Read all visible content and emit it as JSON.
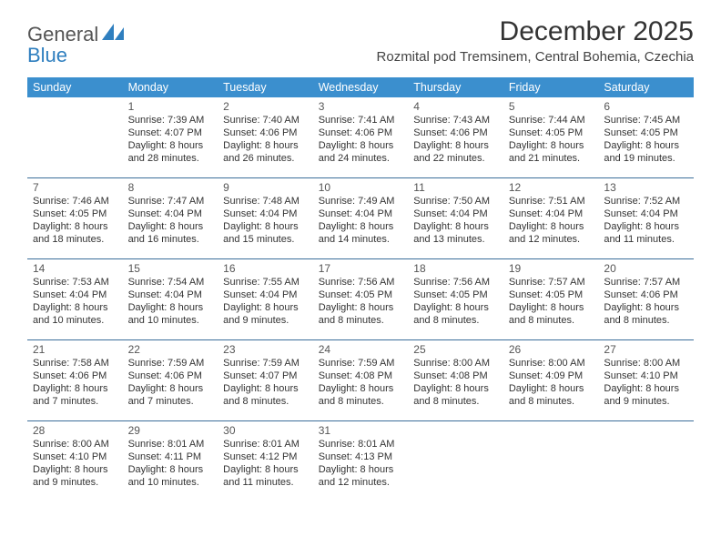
{
  "logo": {
    "text1": "General",
    "text2": "Blue"
  },
  "title": "December 2025",
  "location": "Rozmital pod Tremsinem, Central Bohemia, Czechia",
  "colors": {
    "header_bg": "#3b8fce",
    "rule": "#3b6e9a",
    "logo_blue": "#2f7fbf",
    "text": "#333333",
    "bg": "#ffffff"
  },
  "typography": {
    "title_fontsize": 30,
    "location_fontsize": 15,
    "dow_fontsize": 12.5,
    "daynum_fontsize": 12,
    "cell_fontsize": 11
  },
  "days_of_week": [
    "Sunday",
    "Monday",
    "Tuesday",
    "Wednesday",
    "Thursday",
    "Friday",
    "Saturday"
  ],
  "weeks": [
    [
      null,
      {
        "n": "1",
        "sr": "Sunrise: 7:39 AM",
        "ss": "Sunset: 4:07 PM",
        "dl1": "Daylight: 8 hours",
        "dl2": "and 28 minutes."
      },
      {
        "n": "2",
        "sr": "Sunrise: 7:40 AM",
        "ss": "Sunset: 4:06 PM",
        "dl1": "Daylight: 8 hours",
        "dl2": "and 26 minutes."
      },
      {
        "n": "3",
        "sr": "Sunrise: 7:41 AM",
        "ss": "Sunset: 4:06 PM",
        "dl1": "Daylight: 8 hours",
        "dl2": "and 24 minutes."
      },
      {
        "n": "4",
        "sr": "Sunrise: 7:43 AM",
        "ss": "Sunset: 4:06 PM",
        "dl1": "Daylight: 8 hours",
        "dl2": "and 22 minutes."
      },
      {
        "n": "5",
        "sr": "Sunrise: 7:44 AM",
        "ss": "Sunset: 4:05 PM",
        "dl1": "Daylight: 8 hours",
        "dl2": "and 21 minutes."
      },
      {
        "n": "6",
        "sr": "Sunrise: 7:45 AM",
        "ss": "Sunset: 4:05 PM",
        "dl1": "Daylight: 8 hours",
        "dl2": "and 19 minutes."
      }
    ],
    [
      {
        "n": "7",
        "sr": "Sunrise: 7:46 AM",
        "ss": "Sunset: 4:05 PM",
        "dl1": "Daylight: 8 hours",
        "dl2": "and 18 minutes."
      },
      {
        "n": "8",
        "sr": "Sunrise: 7:47 AM",
        "ss": "Sunset: 4:04 PM",
        "dl1": "Daylight: 8 hours",
        "dl2": "and 16 minutes."
      },
      {
        "n": "9",
        "sr": "Sunrise: 7:48 AM",
        "ss": "Sunset: 4:04 PM",
        "dl1": "Daylight: 8 hours",
        "dl2": "and 15 minutes."
      },
      {
        "n": "10",
        "sr": "Sunrise: 7:49 AM",
        "ss": "Sunset: 4:04 PM",
        "dl1": "Daylight: 8 hours",
        "dl2": "and 14 minutes."
      },
      {
        "n": "11",
        "sr": "Sunrise: 7:50 AM",
        "ss": "Sunset: 4:04 PM",
        "dl1": "Daylight: 8 hours",
        "dl2": "and 13 minutes."
      },
      {
        "n": "12",
        "sr": "Sunrise: 7:51 AM",
        "ss": "Sunset: 4:04 PM",
        "dl1": "Daylight: 8 hours",
        "dl2": "and 12 minutes."
      },
      {
        "n": "13",
        "sr": "Sunrise: 7:52 AM",
        "ss": "Sunset: 4:04 PM",
        "dl1": "Daylight: 8 hours",
        "dl2": "and 11 minutes."
      }
    ],
    [
      {
        "n": "14",
        "sr": "Sunrise: 7:53 AM",
        "ss": "Sunset: 4:04 PM",
        "dl1": "Daylight: 8 hours",
        "dl2": "and 10 minutes."
      },
      {
        "n": "15",
        "sr": "Sunrise: 7:54 AM",
        "ss": "Sunset: 4:04 PM",
        "dl1": "Daylight: 8 hours",
        "dl2": "and 10 minutes."
      },
      {
        "n": "16",
        "sr": "Sunrise: 7:55 AM",
        "ss": "Sunset: 4:04 PM",
        "dl1": "Daylight: 8 hours",
        "dl2": "and 9 minutes."
      },
      {
        "n": "17",
        "sr": "Sunrise: 7:56 AM",
        "ss": "Sunset: 4:05 PM",
        "dl1": "Daylight: 8 hours",
        "dl2": "and 8 minutes."
      },
      {
        "n": "18",
        "sr": "Sunrise: 7:56 AM",
        "ss": "Sunset: 4:05 PM",
        "dl1": "Daylight: 8 hours",
        "dl2": "and 8 minutes."
      },
      {
        "n": "19",
        "sr": "Sunrise: 7:57 AM",
        "ss": "Sunset: 4:05 PM",
        "dl1": "Daylight: 8 hours",
        "dl2": "and 8 minutes."
      },
      {
        "n": "20",
        "sr": "Sunrise: 7:57 AM",
        "ss": "Sunset: 4:06 PM",
        "dl1": "Daylight: 8 hours",
        "dl2": "and 8 minutes."
      }
    ],
    [
      {
        "n": "21",
        "sr": "Sunrise: 7:58 AM",
        "ss": "Sunset: 4:06 PM",
        "dl1": "Daylight: 8 hours",
        "dl2": "and 7 minutes."
      },
      {
        "n": "22",
        "sr": "Sunrise: 7:59 AM",
        "ss": "Sunset: 4:06 PM",
        "dl1": "Daylight: 8 hours",
        "dl2": "and 7 minutes."
      },
      {
        "n": "23",
        "sr": "Sunrise: 7:59 AM",
        "ss": "Sunset: 4:07 PM",
        "dl1": "Daylight: 8 hours",
        "dl2": "and 8 minutes."
      },
      {
        "n": "24",
        "sr": "Sunrise: 7:59 AM",
        "ss": "Sunset: 4:08 PM",
        "dl1": "Daylight: 8 hours",
        "dl2": "and 8 minutes."
      },
      {
        "n": "25",
        "sr": "Sunrise: 8:00 AM",
        "ss": "Sunset: 4:08 PM",
        "dl1": "Daylight: 8 hours",
        "dl2": "and 8 minutes."
      },
      {
        "n": "26",
        "sr": "Sunrise: 8:00 AM",
        "ss": "Sunset: 4:09 PM",
        "dl1": "Daylight: 8 hours",
        "dl2": "and 8 minutes."
      },
      {
        "n": "27",
        "sr": "Sunrise: 8:00 AM",
        "ss": "Sunset: 4:10 PM",
        "dl1": "Daylight: 8 hours",
        "dl2": "and 9 minutes."
      }
    ],
    [
      {
        "n": "28",
        "sr": "Sunrise: 8:00 AM",
        "ss": "Sunset: 4:10 PM",
        "dl1": "Daylight: 8 hours",
        "dl2": "and 9 minutes."
      },
      {
        "n": "29",
        "sr": "Sunrise: 8:01 AM",
        "ss": "Sunset: 4:11 PM",
        "dl1": "Daylight: 8 hours",
        "dl2": "and 10 minutes."
      },
      {
        "n": "30",
        "sr": "Sunrise: 8:01 AM",
        "ss": "Sunset: 4:12 PM",
        "dl1": "Daylight: 8 hours",
        "dl2": "and 11 minutes."
      },
      {
        "n": "31",
        "sr": "Sunrise: 8:01 AM",
        "ss": "Sunset: 4:13 PM",
        "dl1": "Daylight: 8 hours",
        "dl2": "and 12 minutes."
      },
      null,
      null,
      null
    ]
  ]
}
